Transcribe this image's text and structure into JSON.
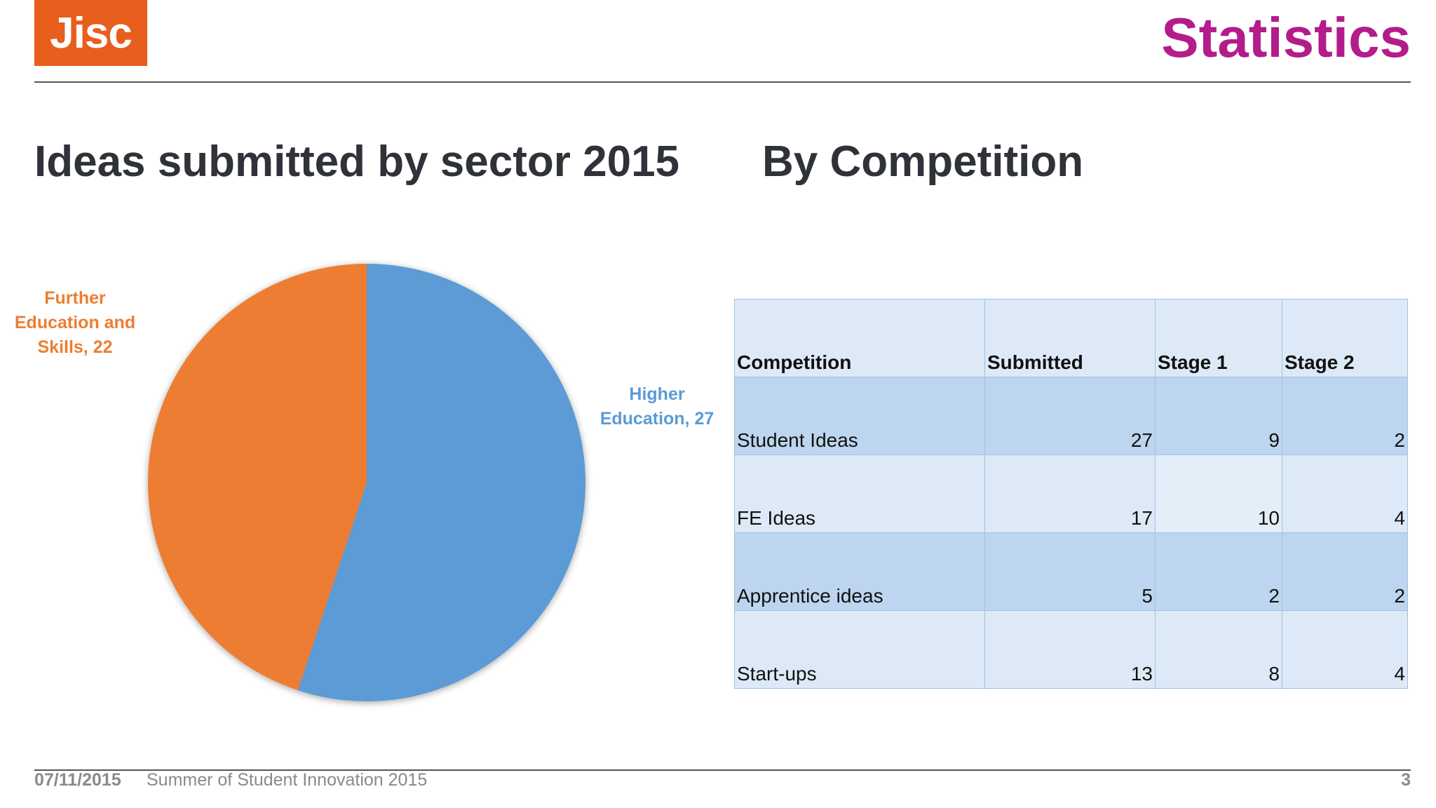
{
  "header": {
    "logo_text": "Jisc",
    "slide_title": "Statistics"
  },
  "headings": {
    "left": "Ideas submitted by sector 2015",
    "right": "By Competition"
  },
  "chart_data": [
    {
      "type": "pie",
      "title": "",
      "slices": [
        {
          "label": "Higher Education",
          "value": 27,
          "color": "#5b9bd5",
          "display_lines": [
            "Higher",
            "Education, 27"
          ]
        },
        {
          "label": "Further Education and Skills",
          "value": 22,
          "color": "#ed7d31",
          "display_lines": [
            "Further",
            "Education and",
            "Skills, 22"
          ]
        }
      ]
    },
    {
      "type": "table",
      "columns": [
        "Competition",
        "Submitted",
        "Stage 1",
        "Stage 2"
      ],
      "rows": [
        [
          "Student Ideas",
          "27",
          "9",
          "2"
        ],
        [
          "FE Ideas",
          "17",
          "10",
          "4"
        ],
        [
          "Apprentice ideas",
          "5",
          "2",
          "2"
        ],
        [
          "Start-ups",
          "13",
          "8",
          "4"
        ]
      ]
    }
  ],
  "footer": {
    "date": "07/11/2015",
    "event": "Summer of Student Innovation 2015",
    "page": "3"
  }
}
